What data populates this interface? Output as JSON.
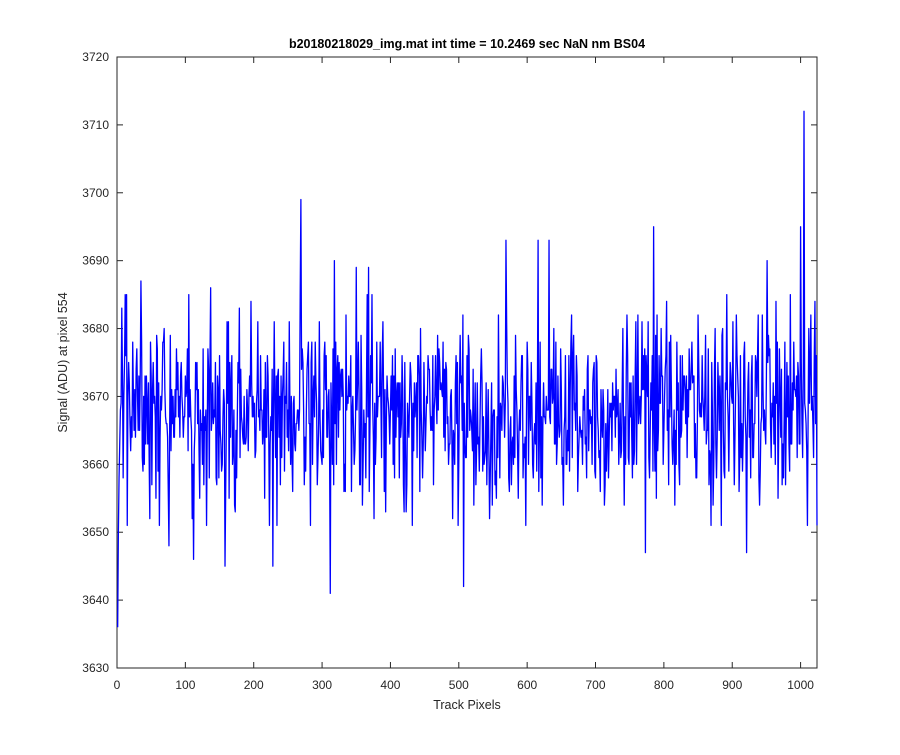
{
  "chart_data": {
    "type": "line",
    "title": "b20180218029_img.mat int time = 10.2469 sec  NaN nm BS04",
    "xlabel": "Track Pixels",
    "ylabel": "Signal (ADU) at pixel 554",
    "xlim": [
      0,
      1024
    ],
    "ylim": [
      3630,
      3720
    ],
    "xticks": [
      0,
      100,
      200,
      300,
      400,
      500,
      600,
      700,
      800,
      900,
      1000
    ],
    "yticks": [
      3630,
      3640,
      3650,
      3660,
      3670,
      3680,
      3690,
      3700,
      3710,
      3720
    ],
    "grid": false,
    "legend": "none",
    "series": [
      {
        "color": "#0000ff",
        "x_start": 1,
        "x_step": 1,
        "n_points": 1024,
        "baseline": 3668,
        "noise_std": 7,
        "notable_points": [
          {
            "x": 1,
            "y": 3636
          },
          {
            "x": 2,
            "y": 3650
          },
          {
            "x": 7,
            "y": 3683
          },
          {
            "x": 35,
            "y": 3687
          },
          {
            "x": 76,
            "y": 3648
          },
          {
            "x": 112,
            "y": 3646
          },
          {
            "x": 137,
            "y": 3686
          },
          {
            "x": 158,
            "y": 3645
          },
          {
            "x": 228,
            "y": 3645
          },
          {
            "x": 269,
            "y": 3699
          },
          {
            "x": 312,
            "y": 3641
          },
          {
            "x": 318,
            "y": 3690
          },
          {
            "x": 350,
            "y": 3689
          },
          {
            "x": 368,
            "y": 3689
          },
          {
            "x": 507,
            "y": 3642
          },
          {
            "x": 569,
            "y": 3693
          },
          {
            "x": 616,
            "y": 3693
          },
          {
            "x": 632,
            "y": 3693
          },
          {
            "x": 773,
            "y": 3647
          },
          {
            "x": 785,
            "y": 3695
          },
          {
            "x": 921,
            "y": 3647
          },
          {
            "x": 951,
            "y": 3690
          },
          {
            "x": 1000,
            "y": 3695
          },
          {
            "x": 1005,
            "y": 3712
          },
          {
            "x": 1010,
            "y": 3651
          },
          {
            "x": 1015,
            "y": 3682
          },
          {
            "x": 1024,
            "y": 3651
          }
        ]
      }
    ]
  }
}
